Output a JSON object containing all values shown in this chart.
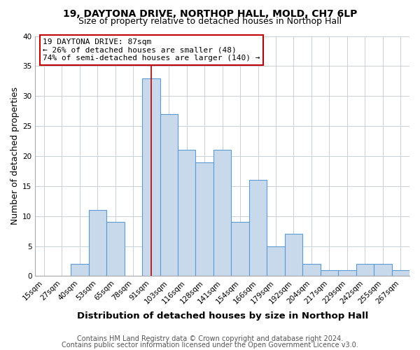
{
  "title1": "19, DAYTONA DRIVE, NORTHOP HALL, MOLD, CH7 6LP",
  "title2": "Size of property relative to detached houses in Northop Hall",
  "xlabel": "Distribution of detached houses by size in Northop Hall",
  "ylabel": "Number of detached properties",
  "footnote1": "Contains HM Land Registry data © Crown copyright and database right 2024.",
  "footnote2": "Contains public sector information licensed under the Open Government Licence v3.0.",
  "annotation_line0": "19 DAYTONA DRIVE: 87sqm",
  "annotation_line1": "← 26% of detached houses are smaller (48)",
  "annotation_line2": "74% of semi-detached houses are larger (140) →",
  "bar_labels": [
    "15sqm",
    "27sqm",
    "40sqm",
    "53sqm",
    "65sqm",
    "78sqm",
    "91sqm",
    "103sqm",
    "116sqm",
    "128sqm",
    "141sqm",
    "154sqm",
    "166sqm",
    "179sqm",
    "192sqm",
    "204sqm",
    "217sqm",
    "229sqm",
    "242sqm",
    "255sqm",
    "267sqm"
  ],
  "bar_values": [
    0,
    0,
    2,
    11,
    9,
    0,
    33,
    27,
    21,
    19,
    21,
    9,
    16,
    5,
    7,
    2,
    1,
    1,
    2,
    2,
    1
  ],
  "bar_color": "#c9d9ec",
  "bar_edge_color": "#5b9bd5",
  "red_line_index": 6,
  "red_line_color": "#c00000",
  "ylim": [
    0,
    40
  ],
  "yticks": [
    0,
    5,
    10,
    15,
    20,
    25,
    30,
    35,
    40
  ],
  "background_color": "#ffffff",
  "grid_color": "#c8d0d8",
  "annotation_box_color": "#ffffff",
  "annotation_box_edge_color": "#c00000",
  "title_fontsize": 10,
  "subtitle_fontsize": 9,
  "ylabel_fontsize": 9,
  "xlabel_fontsize": 9.5,
  "tick_fontsize": 7.5,
  "annotation_fontsize": 8,
  "footnote_fontsize": 7
}
